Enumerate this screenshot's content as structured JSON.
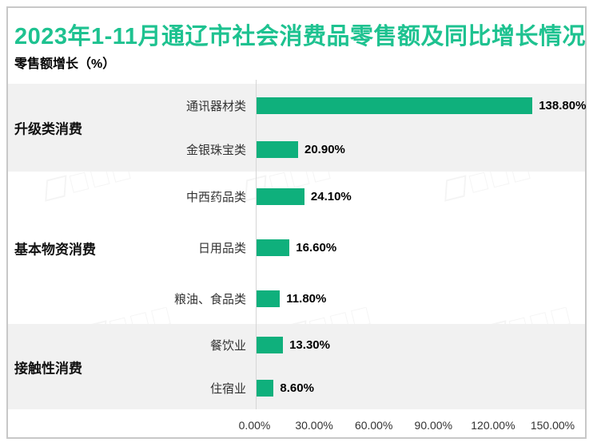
{
  "title": "2023年1-11月通辽市社会消费品零售额及同比增长情况",
  "subtitle": "零售额增长（%）",
  "colors": {
    "title_green": "#1ec290",
    "bar_green": "#0fb07c",
    "band_gray": "#f1f1f1"
  },
  "chart_data": {
    "type": "bar",
    "orientation": "horizontal",
    "title": "2023年1-11月通辽市社会消费品零售额及同比增长情况",
    "ylabel": "零售额增长（%）",
    "xlabel": "",
    "unit": "%",
    "xlim": [
      0,
      150
    ],
    "grid": false,
    "legend": null,
    "x_ticks": [
      "0.00%",
      "30.00%",
      "60.00%",
      "90.00%",
      "120.00%",
      "150.00%"
    ],
    "x_tick_values": [
      0,
      30,
      60,
      90,
      120,
      150
    ],
    "groups": [
      {
        "name": "升级类消费",
        "rows": [
          {
            "label": "通讯器材类",
            "value": 138.8,
            "display": "138.80%"
          },
          {
            "label": "金银珠宝类",
            "value": 20.9,
            "display": "20.90%"
          }
        ]
      },
      {
        "name": "基本物资消费",
        "rows": [
          {
            "label": "中西药品类",
            "value": 24.1,
            "display": "24.10%"
          },
          {
            "label": "日用品类",
            "value": 16.6,
            "display": "16.60%"
          },
          {
            "label": "粮油、食品类",
            "value": 11.8,
            "display": "11.80%"
          }
        ]
      },
      {
        "name": "接触性消费",
        "rows": [
          {
            "label": "餐饮业",
            "value": 13.3,
            "display": "13.30%"
          },
          {
            "label": "住宿业",
            "value": 8.6,
            "display": "8.60%"
          }
        ]
      }
    ]
  }
}
